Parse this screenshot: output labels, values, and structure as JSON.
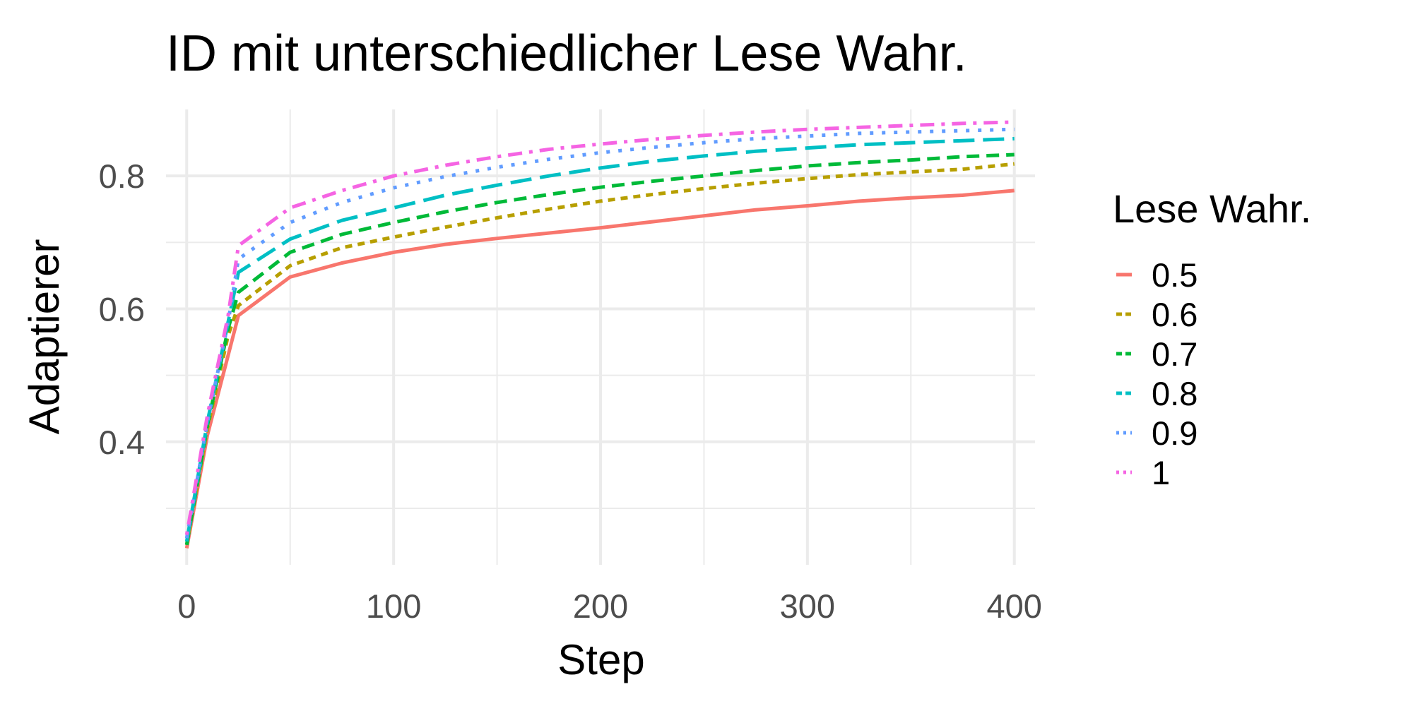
{
  "chart_data": {
    "type": "line",
    "title": "ID mit unterschiedlicher Lese Wahr.",
    "xlabel": "Step",
    "ylabel": "Adaptierer",
    "xlim": [
      -10,
      410
    ],
    "ylim": [
      0.215,
      0.9
    ],
    "x_ticks": [
      0,
      100,
      200,
      300,
      400
    ],
    "x_tick_labels": [
      "0",
      "100",
      "200",
      "300",
      "400"
    ],
    "y_ticks": [
      0.4,
      0.6,
      0.8
    ],
    "y_tick_labels": [
      "0.4",
      "0.6",
      "0.8"
    ],
    "grid": true,
    "legend": {
      "title": "Lese Wahr.",
      "position": "right"
    },
    "x": [
      0,
      10,
      20,
      25,
      50,
      75,
      100,
      125,
      150,
      175,
      200,
      225,
      250,
      275,
      300,
      325,
      350,
      375,
      400
    ],
    "series": [
      {
        "name": "0.5",
        "color": "#F8766D",
        "dash": "solid",
        "values": [
          0.24,
          0.41,
          0.53,
          0.59,
          0.648,
          0.669,
          0.685,
          0.697,
          0.706,
          0.714,
          0.722,
          0.731,
          0.74,
          0.749,
          0.755,
          0.762,
          0.767,
          0.771,
          0.778
        ]
      },
      {
        "name": "0.6",
        "color": "#B79F00",
        "dash": "dotted-short",
        "values": [
          0.245,
          0.42,
          0.56,
          0.605,
          0.665,
          0.692,
          0.708,
          0.723,
          0.737,
          0.75,
          0.762,
          0.772,
          0.781,
          0.789,
          0.796,
          0.802,
          0.806,
          0.81,
          0.818
        ]
      },
      {
        "name": "0.7",
        "color": "#00BA38",
        "dash": "dashed",
        "values": [
          0.245,
          0.425,
          0.57,
          0.625,
          0.685,
          0.712,
          0.73,
          0.746,
          0.76,
          0.772,
          0.783,
          0.792,
          0.8,
          0.808,
          0.815,
          0.82,
          0.824,
          0.829,
          0.832
        ]
      },
      {
        "name": "0.8",
        "color": "#00BFC4",
        "dash": "longdash",
        "values": [
          0.25,
          0.43,
          0.58,
          0.655,
          0.705,
          0.733,
          0.752,
          0.771,
          0.786,
          0.8,
          0.812,
          0.822,
          0.83,
          0.837,
          0.842,
          0.847,
          0.85,
          0.853,
          0.856
        ]
      },
      {
        "name": "0.9",
        "color": "#619CFF",
        "dash": "dotted",
        "values": [
          0.255,
          0.43,
          0.58,
          0.675,
          0.73,
          0.76,
          0.782,
          0.799,
          0.813,
          0.825,
          0.835,
          0.843,
          0.85,
          0.856,
          0.86,
          0.864,
          0.866,
          0.868,
          0.87
        ]
      },
      {
        "name": "1",
        "color": "#F564E3",
        "dash": "dotdash",
        "values": [
          0.26,
          0.44,
          0.59,
          0.695,
          0.752,
          0.778,
          0.8,
          0.816,
          0.829,
          0.84,
          0.848,
          0.855,
          0.861,
          0.866,
          0.87,
          0.873,
          0.876,
          0.879,
          0.881
        ]
      }
    ]
  }
}
